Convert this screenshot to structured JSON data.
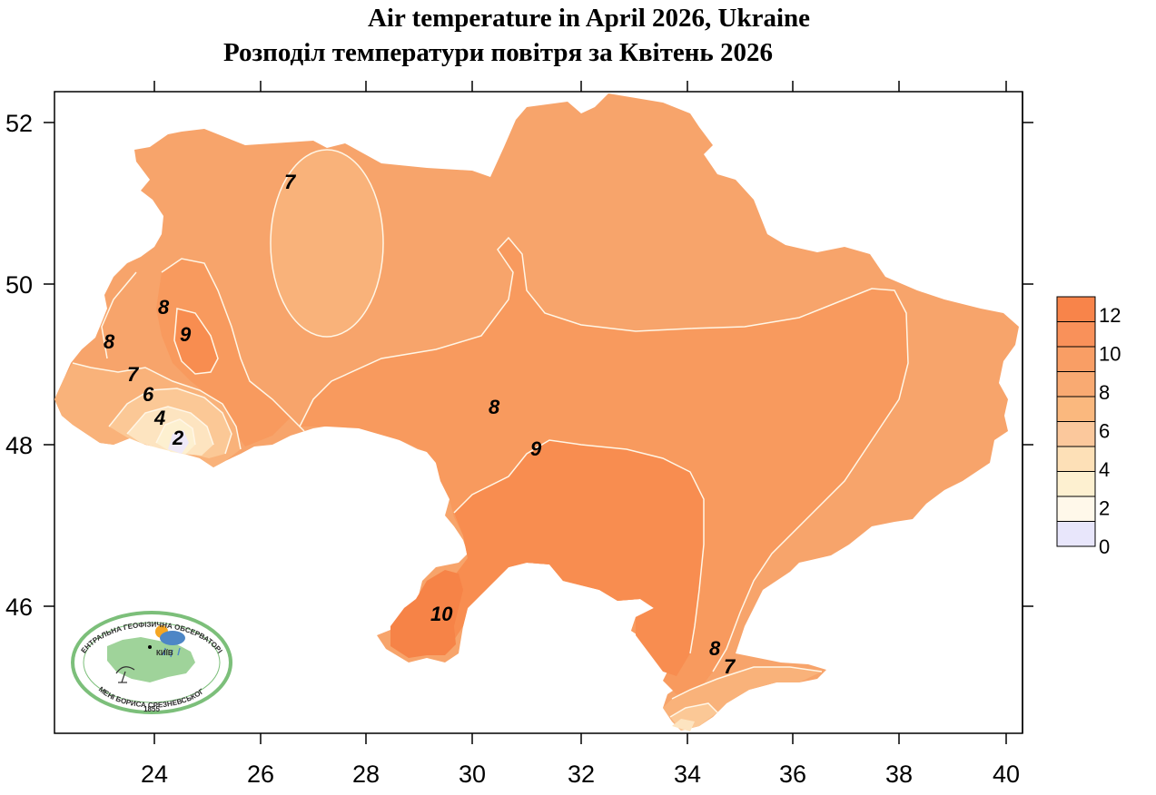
{
  "title_en": "Air temperature in April 2026, Ukraine",
  "title_uk": "Розподіл температури повітря за Квітень 2026",
  "axes": {
    "x_ticks": [
      "24",
      "26",
      "28",
      "30",
      "32",
      "34",
      "36",
      "38",
      "40"
    ],
    "y_ticks": [
      "52",
      "50",
      "48",
      "46"
    ]
  },
  "contour_labels": [
    {
      "id": "c7-north",
      "text": "7"
    },
    {
      "id": "c8-west-a",
      "text": "8"
    },
    {
      "id": "c8-west-b",
      "text": "8"
    },
    {
      "id": "c9-west",
      "text": "9"
    },
    {
      "id": "c7-west",
      "text": "7"
    },
    {
      "id": "c6-west",
      "text": "6"
    },
    {
      "id": "c4-west",
      "text": "4"
    },
    {
      "id": "c2-west",
      "text": "2"
    },
    {
      "id": "c8-center",
      "text": "8"
    },
    {
      "id": "c9-center",
      "text": "9"
    },
    {
      "id": "c10-south",
      "text": "10"
    },
    {
      "id": "c8-crimea",
      "text": "8"
    },
    {
      "id": "c7-crimea",
      "text": "7"
    }
  ],
  "legend": {
    "labels": [
      "12",
      "10",
      "8",
      "6",
      "4",
      "2",
      "0"
    ],
    "colors": [
      "#f8844a",
      "#f9915a",
      "#f99e65",
      "#f9aa72",
      "#fab87e",
      "#fbc89c",
      "#fde0b7",
      "#fdf0d0",
      "#fff8ea",
      "#e8e6fb"
    ]
  },
  "logo": {
    "ring_top": "ЦЕНТРАЛЬНА ГЕОФІЗИЧНА ОБСЕРВАТОРІЯ",
    "ring_bottom": "ІМЕНІ БОРИСА СРЕЗНЕВСЬКОГО",
    "city": "КИЇВ",
    "year": "1855"
  },
  "colors": {
    "zone_7_8": "#f7a46b",
    "zone_8_9": "#f89a5e",
    "zone_9_10": "#f88d50",
    "zone_10_plus": "#f68347",
    "zone_6_7": "#f9b27a",
    "zone_4_6": "#fbc896",
    "zone_2_4": "#fde4c0",
    "zone_0_2": "#efe9f8",
    "isoline": "#fff6e6"
  }
}
